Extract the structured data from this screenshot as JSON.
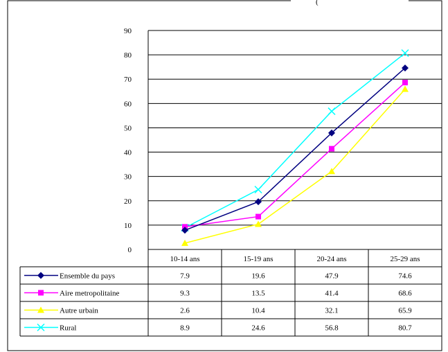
{
  "top_fragment": "(",
  "chart_data": {
    "type": "line",
    "categories": [
      "10-14 ans",
      "15-19 ans",
      "20-24 ans",
      "25-29 ans"
    ],
    "ylim": [
      0,
      90
    ],
    "yticks": [
      0,
      10,
      20,
      30,
      40,
      50,
      60,
      70,
      80,
      90
    ],
    "grid": true,
    "legend": "data-table",
    "series": [
      {
        "name": "Ensemble du pays",
        "values": [
          7.9,
          19.6,
          47.9,
          74.6
        ],
        "color": "#000080",
        "marker": "diamond"
      },
      {
        "name": "Aire metropolitaine",
        "values": [
          9.3,
          13.5,
          41.4,
          68.6
        ],
        "color": "#ff00ff",
        "marker": "square"
      },
      {
        "name": "Autre urbain",
        "values": [
          2.6,
          10.4,
          32.1,
          65.9
        ],
        "color": "#ffff00",
        "marker": "triangle"
      },
      {
        "name": "Rural",
        "values": [
          8.9,
          24.6,
          56.8,
          80.7
        ],
        "color": "#00ffff",
        "marker": "x"
      }
    ]
  }
}
